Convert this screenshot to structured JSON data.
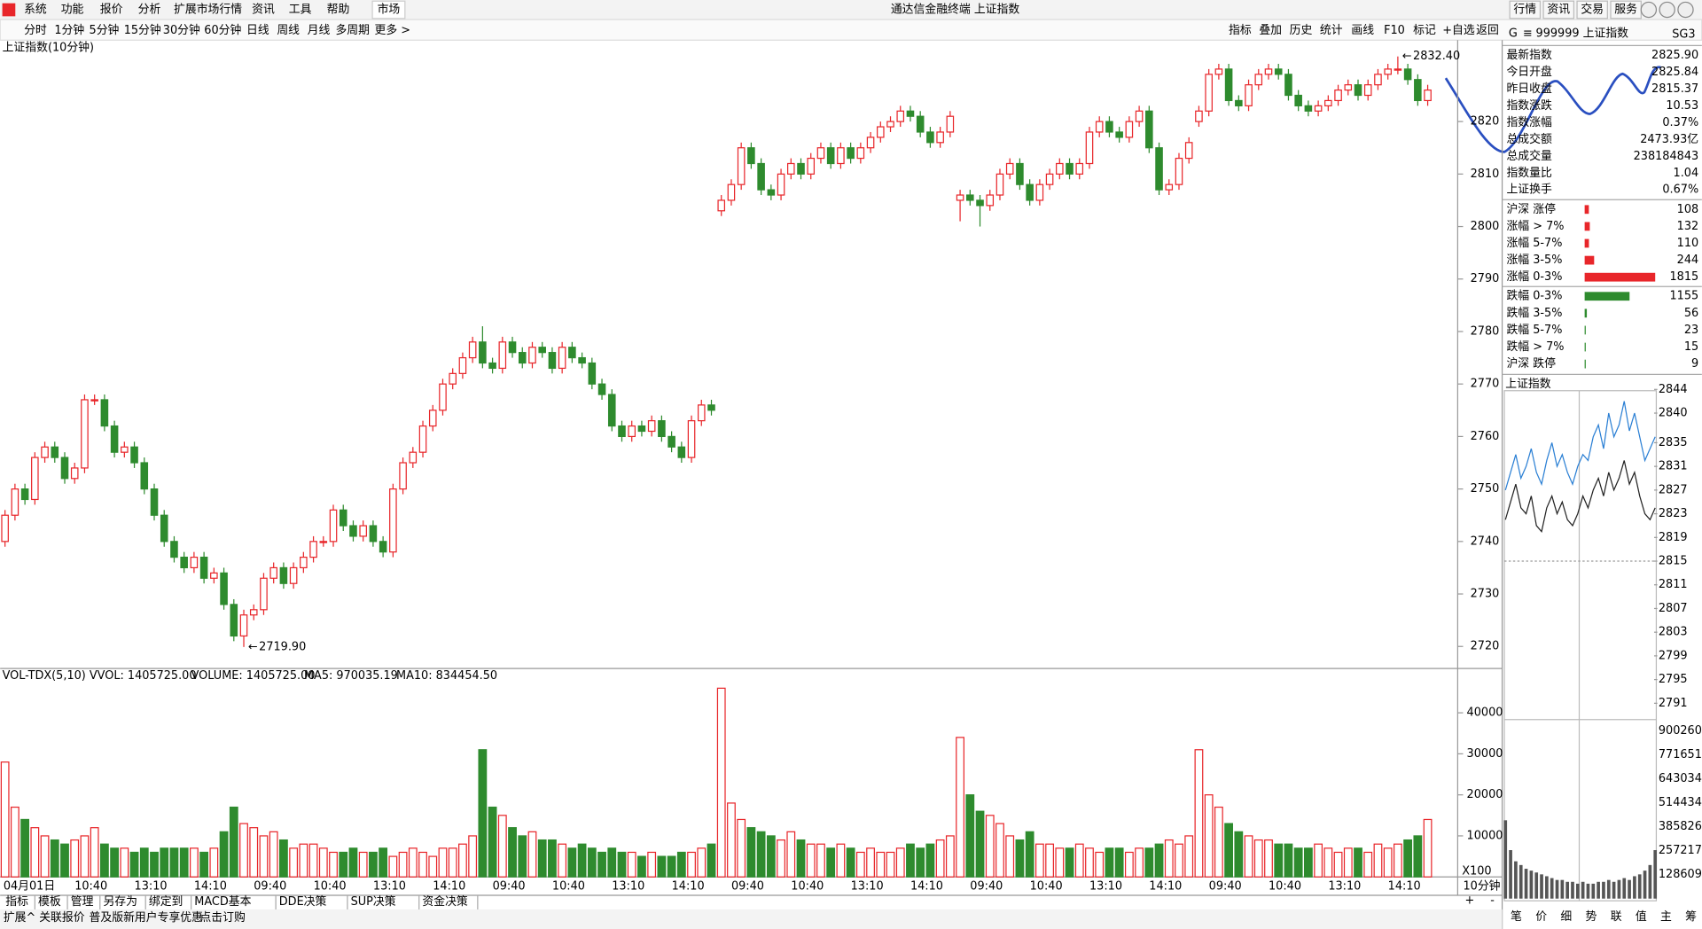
{
  "menu": {
    "items": [
      "系统",
      "功能",
      "报价",
      "分析",
      "扩展市场行情",
      "资讯",
      "工具",
      "帮助"
    ],
    "active": "市场",
    "title": "通达信金融终端 上证指数",
    "right_buttons": [
      "行情",
      "资讯",
      "交易",
      "服务"
    ]
  },
  "toolbar": {
    "periods": [
      "分时",
      "1分钟",
      "5分钟",
      "15分钟",
      "30分钟",
      "60分钟",
      "日线",
      "周线",
      "月线",
      "多周期"
    ],
    "more": "更多 >",
    "tools": [
      "指标",
      "叠加",
      "历史",
      "统计",
      "画线",
      "F10",
      "标记",
      "+自选",
      "返回"
    ]
  },
  "chart_data": {
    "type": "candlestick",
    "title": "上证指数(10分钟)",
    "up_color": "#e8262a",
    "down_color": "#2e8b2e",
    "open": [
      2740,
      2745,
      2750,
      2748,
      2756,
      2758,
      2756,
      2752,
      2754,
      2767,
      2767,
      2762,
      2757,
      2758,
      2755,
      2750,
      2745,
      2740,
      2737,
      2735,
      2737,
      2733,
      2734,
      2728,
      2722,
      2726,
      2727,
      2733,
      2735,
      2732,
      2735,
      2737,
      2740,
      2740,
      2746,
      2743,
      2741,
      2743,
      2740,
      2738,
      2750,
      2755,
      2757,
      2762,
      2765,
      2770,
      2772,
      2775,
      2778,
      2774,
      2773,
      2778,
      2776,
      2774,
      2777,
      2776,
      2773,
      2777,
      2775,
      2774,
      2770,
      2768,
      2762,
      2760,
      2762,
      2761,
      2763,
      2760,
      2758,
      2756,
      2763,
      2766,
      2803,
      2805,
      2808,
      2815,
      2812,
      2807,
      2806,
      2810,
      2812,
      2810,
      2813,
      2815,
      2812,
      2815,
      2813,
      2815,
      2817,
      2819,
      2820,
      2822,
      2821,
      2818,
      2816,
      2818,
      2805,
      2806,
      2805,
      2804,
      2806,
      2810,
      2812,
      2808,
      2805,
      2808,
      2810,
      2812,
      2810,
      2812,
      2818,
      2820,
      2818,
      2817,
      2820,
      2822,
      2815,
      2807,
      2808,
      2813,
      2820,
      2822,
      2829,
      2830,
      2824,
      2823,
      2827,
      2829,
      2830,
      2829,
      2825,
      2823,
      2822,
      2823,
      2824,
      2826,
      2827,
      2825,
      2827,
      2829,
      2830,
      2830,
      2828,
      2824
    ],
    "close": [
      2745,
      2750,
      2748,
      2756,
      2758,
      2756,
      2752,
      2754,
      2767,
      2767,
      2762,
      2757,
      2758,
      2755,
      2750,
      2745,
      2740,
      2737,
      2735,
      2737,
      2733,
      2734,
      2728,
      2722,
      2726,
      2727,
      2733,
      2735,
      2732,
      2735,
      2737,
      2740,
      2740,
      2746,
      2743,
      2741,
      2743,
      2740,
      2738,
      2750,
      2755,
      2757,
      2762,
      2765,
      2770,
      2772,
      2775,
      2778,
      2774,
      2773,
      2778,
      2776,
      2774,
      2777,
      2776,
      2773,
      2777,
      2775,
      2774,
      2770,
      2768,
      2762,
      2760,
      2762,
      2761,
      2763,
      2760,
      2758,
      2756,
      2763,
      2766,
      2765,
      2805,
      2808,
      2815,
      2812,
      2807,
      2806,
      2810,
      2812,
      2810,
      2813,
      2815,
      2812,
      2815,
      2813,
      2815,
      2817,
      2819,
      2820,
      2822,
      2821,
      2818,
      2816,
      2818,
      2821,
      2806,
      2805,
      2804,
      2806,
      2810,
      2812,
      2808,
      2805,
      2808,
      2810,
      2812,
      2810,
      2812,
      2818,
      2820,
      2818,
      2817,
      2820,
      2822,
      2815,
      2807,
      2808,
      2813,
      2816,
      2822,
      2829,
      2830,
      2824,
      2823,
      2827,
      2829,
      2830,
      2829,
      2825,
      2823,
      2822,
      2823,
      2824,
      2826,
      2827,
      2825,
      2827,
      2829,
      2830,
      2830,
      2828,
      2824,
      2826
    ],
    "high": [
      2746,
      2751,
      2751,
      2757,
      2759,
      2759,
      2757,
      2755,
      2768,
      2768,
      2768,
      2763,
      2759,
      2759,
      2756,
      2751,
      2746,
      2741,
      2738,
      2738,
      2738,
      2735,
      2735,
      2729,
      2727,
      2728,
      2734,
      2736,
      2736,
      2736,
      2738,
      2741,
      2741,
      2747,
      2747,
      2744,
      2744,
      2744,
      2741,
      2751,
      2756,
      2758,
      2763,
      2766,
      2771,
      2773,
      2776,
      2779,
      2781,
      2775,
      2779,
      2779,
      2777,
      2778,
      2778,
      2777,
      2778,
      2778,
      2776,
      2775,
      2771,
      2769,
      2763,
      2763,
      2763,
      2764,
      2764,
      2761,
      2759,
      2764,
      2767,
      2767,
      2806,
      2809,
      2816,
      2816,
      2813,
      2808,
      2811,
      2813,
      2813,
      2814,
      2816,
      2816,
      2816,
      2816,
      2816,
      2818,
      2820,
      2821,
      2823,
      2823,
      2822,
      2819,
      2819,
      2822,
      2807,
      2807,
      2806,
      2807,
      2811,
      2813,
      2813,
      2809,
      2809,
      2811,
      2813,
      2813,
      2813,
      2819,
      2821,
      2821,
      2819,
      2821,
      2823,
      2823,
      2816,
      2809,
      2814,
      2817,
      2823,
      2830,
      2831,
      2831,
      2825,
      2828,
      2830,
      2831,
      2831,
      2830,
      2826,
      2824,
      2824,
      2825,
      2827,
      2828,
      2828,
      2828,
      2830,
      2831,
      2832.4,
      2831,
      2829,
      2827
    ],
    "low": [
      2739,
      2744,
      2747,
      2747,
      2755,
      2755,
      2751,
      2751,
      2753,
      2766,
      2761,
      2756,
      2756,
      2754,
      2749,
      2744,
      2739,
      2736,
      2734,
      2734,
      2732,
      2732,
      2727,
      2721,
      2719.9,
      2725,
      2726,
      2732,
      2731,
      2731,
      2734,
      2736,
      2739,
      2739,
      2742,
      2740,
      2740,
      2739,
      2737,
      2737,
      2749,
      2754,
      2756,
      2761,
      2764,
      2769,
      2771,
      2774,
      2773,
      2772,
      2772,
      2775,
      2773,
      2773,
      2775,
      2772,
      2772,
      2774,
      2773,
      2769,
      2767,
      2761,
      2759,
      2759,
      2760,
      2760,
      2759,
      2757,
      2755,
      2755,
      2762,
      2764,
      2802,
      2804,
      2807,
      2811,
      2806,
      2805,
      2805,
      2809,
      2809,
      2809,
      2812,
      2811,
      2811,
      2812,
      2812,
      2814,
      2816,
      2818,
      2819,
      2820,
      2817,
      2815,
      2815,
      2817,
      2801,
      2804,
      2800,
      2803,
      2805,
      2809,
      2807,
      2804,
      2804,
      2807,
      2809,
      2809,
      2809,
      2811,
      2817,
      2817,
      2816,
      2816,
      2819,
      2814,
      2806,
      2806,
      2807,
      2812,
      2819,
      2821,
      2828,
      2823,
      2822,
      2822,
      2826,
      2828,
      2828,
      2824,
      2822,
      2821,
      2821,
      2822,
      2823,
      2825,
      2824,
      2824,
      2826,
      2828,
      2829,
      2827,
      2823,
      2823
    ],
    "ylim": [
      2716,
      2835.3
    ],
    "yticks": [
      2720,
      2730,
      2740,
      2750,
      2760,
      2770,
      2780,
      2790,
      2800,
      2810,
      2820
    ],
    "annotations": [
      {
        "value": 2832.4,
        "label": "2832.40",
        "index": 140
      },
      {
        "value": 2719.9,
        "label": "2719.90",
        "index": 24
      }
    ],
    "time_labels": [
      "04月01日",
      "10:40",
      "13:10",
      "14:10",
      "09:40",
      "10:40",
      "13:10",
      "14:10",
      "09:40",
      "10:40",
      "13:10",
      "14:10",
      "09:40",
      "10:40",
      "13:10",
      "14:10",
      "09:40",
      "10:40",
      "13:10",
      "14:10",
      "09:40",
      "10:40",
      "13:10",
      "14:10"
    ],
    "period_label": "10分钟",
    "volume": {
      "header": [
        "VOL-TDX(5,10) VVOL: 1405725.00",
        "VOLUME: 1405725.00",
        "MA5: 970035.19",
        "MA10: 834454.50"
      ],
      "unit": "X100",
      "values": [
        28000,
        17000,
        14000,
        12000,
        10000,
        9000,
        8000,
        9000,
        10000,
        12000,
        8000,
        7000,
        7000,
        6000,
        7000,
        6000,
        7000,
        7000,
        7000,
        7000,
        6000,
        7000,
        11000,
        17000,
        13000,
        12000,
        10000,
        11000,
        9000,
        7000,
        8000,
        8000,
        7000,
        6000,
        6000,
        7000,
        6000,
        6000,
        7000,
        5000,
        6000,
        7000,
        6000,
        5000,
        7000,
        7000,
        8000,
        10000,
        31000,
        17000,
        15000,
        12000,
        10000,
        11000,
        9000,
        9000,
        8000,
        7000,
        8000,
        7000,
        6000,
        7000,
        6000,
        6000,
        5000,
        6000,
        5000,
        5000,
        6000,
        6000,
        7000,
        8000,
        46000,
        18000,
        14000,
        12000,
        11000,
        10000,
        9000,
        11000,
        9000,
        8000,
        8000,
        7000,
        8000,
        7000,
        6000,
        7000,
        6000,
        6000,
        7000,
        8000,
        7000,
        8000,
        9000,
        10000,
        34000,
        20000,
        16000,
        15000,
        13000,
        10000,
        9000,
        11000,
        8000,
        8000,
        7000,
        7000,
        8000,
        7000,
        6000,
        7000,
        7000,
        6000,
        7000,
        7000,
        8000,
        9000,
        8000,
        10000,
        31000,
        20000,
        17000,
        13000,
        11000,
        10000,
        9000,
        9000,
        8000,
        8000,
        7000,
        7000,
        8000,
        7000,
        6000,
        7000,
        7000,
        6000,
        8000,
        7000,
        8000,
        9000,
        10000,
        14000
      ],
      "ylim": [
        0,
        50000
      ],
      "yticks": [
        10000,
        20000,
        30000,
        40000
      ]
    }
  },
  "right_panel": {
    "code": "999999 上证指数",
    "flag": "G",
    "menu_icon": "≡",
    "tag": "SG3",
    "quote": [
      {
        "label": "最新指数",
        "value": "2825.90",
        "color": "#e8262a"
      },
      {
        "label": "今日开盘",
        "value": "2825.84",
        "color": "#e8262a"
      },
      {
        "label": "昨日收盘",
        "value": "2815.37",
        "color": "#000000"
      },
      {
        "label": "指数涨跌",
        "value": "10.53",
        "color": "#e8262a"
      },
      {
        "label": "指数涨幅",
        "value": "0.37%",
        "color": "#e8262a"
      },
      {
        "label": "总成交额",
        "value": "2473.93亿",
        "color": "#000000"
      },
      {
        "label": "总成交量",
        "value": "238184843",
        "color": "#000000"
      },
      {
        "label": "指数量比",
        "value": "1.04",
        "color": "#e8262a"
      },
      {
        "label": "上证换手",
        "value": "0.67%",
        "color": "#000000"
      }
    ],
    "breadth": [
      {
        "label": "沪深 涨停",
        "count": 108,
        "color": "#e8262a"
      },
      {
        "label": "涨幅 > 7%",
        "count": 132,
        "color": "#e8262a"
      },
      {
        "label": "涨幅 5-7%",
        "count": 110,
        "color": "#e8262a"
      },
      {
        "label": "涨幅 3-5%",
        "count": 244,
        "color": "#e8262a"
      },
      {
        "label": "涨幅 0-3%",
        "count": 1815,
        "color": "#e8262a"
      },
      {
        "label": "跌幅 0-3%",
        "count": 1155,
        "color": "#2e8b2e"
      },
      {
        "label": "跌幅 3-5%",
        "count": 56,
        "color": "#2e8b2e"
      },
      {
        "label": "跌幅 5-7%",
        "count": 23,
        "color": "#2e8b2e"
      },
      {
        "label": "跌幅 > 7%",
        "count": 15,
        "color": "#2e8b2e"
      },
      {
        "label": "沪深 跌停",
        "count": 9,
        "color": "#2e8b2e"
      }
    ],
    "mini": {
      "title": "上证指数",
      "ylim": [
        2788.8,
        2844.7
      ],
      "yticks": [
        2844,
        2840,
        2835,
        2831,
        2827,
        2823,
        2819,
        2815,
        2811,
        2807,
        2803,
        2799,
        2795,
        2791
      ],
      "base": 2815,
      "blue": [
        2827,
        2830,
        2833,
        2829,
        2831,
        2834,
        2830,
        2828,
        2832,
        2835,
        2831,
        2833,
        2830,
        2828,
        2831,
        2833,
        2832,
        2836,
        2838,
        2834,
        2840,
        2836,
        2838,
        2842,
        2837,
        2840,
        2836,
        2832,
        2834,
        2836
      ],
      "black": [
        2822,
        2825,
        2828,
        2824,
        2823,
        2826,
        2821,
        2820,
        2824,
        2826,
        2823,
        2825,
        2822,
        2821,
        2823,
        2826,
        2824,
        2827,
        2829,
        2826,
        2830,
        2827,
        2829,
        2832,
        2828,
        2830,
        2826,
        2823,
        2822,
        2824
      ],
      "volume": [
        420000,
        260000,
        200000,
        180000,
        160000,
        150000,
        140000,
        130000,
        120000,
        110000,
        100000,
        100000,
        90000,
        90000,
        80000,
        90000,
        80000,
        80000,
        90000,
        90000,
        100000,
        90000,
        100000,
        110000,
        100000,
        120000,
        130000,
        150000,
        180000,
        260000
      ],
      "vol_ylim": [
        0,
        960000
      ],
      "vol_yticks": [
        900260,
        771651,
        643034,
        514434,
        385826,
        257217,
        128609
      ]
    },
    "tabs": [
      "笔",
      "价",
      "细",
      "势",
      "联",
      "值",
      "主",
      "筹"
    ],
    "active_tab": "势"
  },
  "bottom": {
    "tabs": [
      "指标",
      "模板",
      "管理",
      "另存为",
      "绑定到",
      "MACD基本",
      "DDE决策",
      "SUP决策",
      "资金决策"
    ],
    "active": "管理",
    "status": [
      "扩展^",
      "关联报价",
      "普及版新用户专享优惠",
      "点击订购"
    ]
  }
}
